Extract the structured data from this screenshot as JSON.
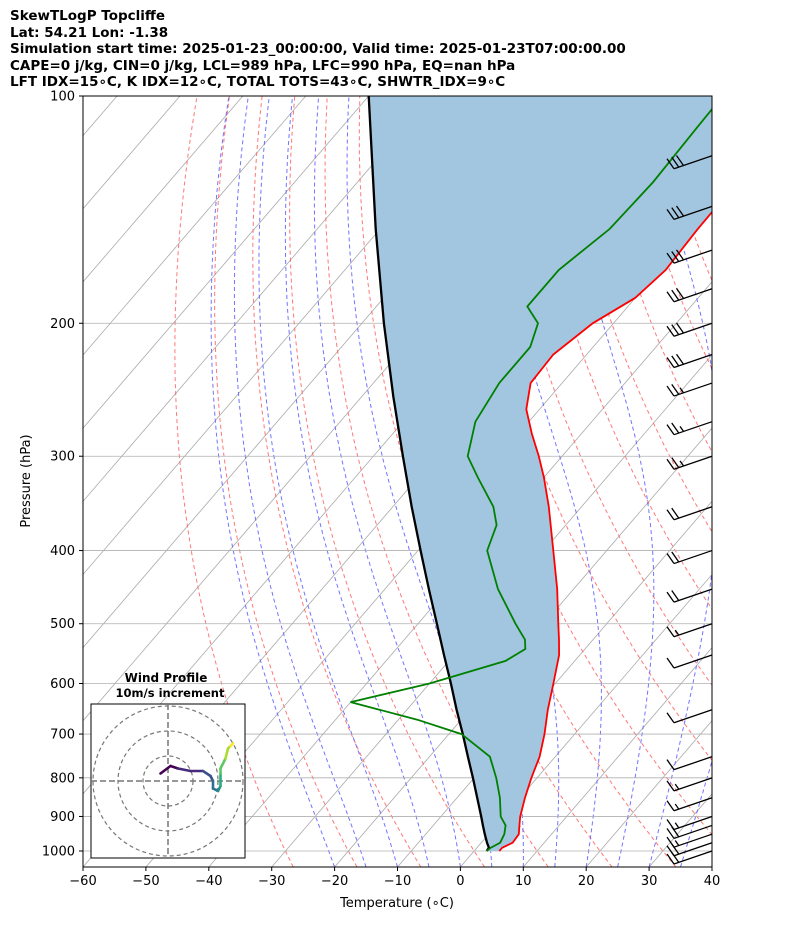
{
  "header": {
    "line1": "SkewTLogP Topcliffe",
    "line2": "Lat: 54.21   Lon: -1.38",
    "line3": "Simulation start time: 2025-01-23_00:00:00, Valid time: 2025-01-23T07:00:00.00",
    "line4": "CAPE=0 j/kg, CIN=0 j/kg, LCL=989 hPa, LFC=990 hPa, EQ=nan hPa",
    "line5": "LFT IDX=15∘C, K IDX=12∘C, TOTAL TOTS=43∘C, SHWTR_IDX=9∘C"
  },
  "chart_data": [
    {
      "type": "line",
      "subtype": "skew-t log-p",
      "xlabel": "Temperature (∘C)",
      "ylabel": "Pressure (hPa)",
      "xlim": [
        -60,
        40
      ],
      "ylim": [
        1050,
        100
      ],
      "y_scale": "log",
      "grid": true,
      "x_ticks": [
        -60,
        -50,
        -40,
        -30,
        -20,
        -10,
        0,
        10,
        20,
        30,
        40
      ],
      "y_ticks": [
        100,
        200,
        300,
        400,
        500,
        600,
        700,
        800,
        900,
        1000
      ],
      "colors": {
        "temperature": "#ff0000",
        "dewpoint": "#008000",
        "parcel": "#000000",
        "shade": "#a3c6e0",
        "dry_adiabat": "#ff6060",
        "moist_adiabat": "#5a5aff",
        "isotherm": "#aaaaaa"
      },
      "series": [
        {
          "key": "temperature",
          "color": "#ff0000",
          "points": [
            [
              1000,
              4
            ],
            [
              990,
              4
            ],
            [
              975,
              5
            ],
            [
              950,
              4.8
            ],
            [
              925,
              3.7
            ],
            [
              900,
              2.6
            ],
            [
              850,
              0.8
            ],
            [
              800,
              -0.9
            ],
            [
              750,
              -2.5
            ],
            [
              700,
              -4.8
            ],
            [
              650,
              -7.6
            ],
            [
              600,
              -10.3
            ],
            [
              550,
              -13.3
            ],
            [
              525,
              -15.4
            ],
            [
              500,
              -17.7
            ],
            [
              450,
              -22.6
            ],
            [
              400,
              -28.5
            ],
            [
              350,
              -35.2
            ],
            [
              320,
              -40
            ],
            [
              300,
              -43.7
            ],
            [
              280,
              -47.9
            ],
            [
              260,
              -52.1
            ],
            [
              240,
              -55
            ],
            [
              220,
              -55.3
            ],
            [
              200,
              -53.3
            ],
            [
              185,
              -50
            ],
            [
              170,
              -49
            ],
            [
              150,
              -49.5
            ],
            [
              130,
              -49.6
            ],
            [
              115,
              -49.4
            ],
            [
              100,
              -50.5
            ]
          ]
        },
        {
          "key": "dewpoint",
          "color": "#008000",
          "points": [
            [
              1000,
              2
            ],
            [
              990,
              2.2
            ],
            [
              975,
              3
            ],
            [
              950,
              2.5
            ],
            [
              925,
              1.5
            ],
            [
              900,
              -0.5
            ],
            [
              850,
              -3.2
            ],
            [
              800,
              -6.5
            ],
            [
              750,
              -10.4
            ],
            [
              700,
              -18
            ],
            [
              670,
              -27
            ],
            [
              635,
              -40
            ],
            [
              600,
              -30
            ],
            [
              560,
              -21
            ],
            [
              540,
              -19.5
            ],
            [
              525,
              -20.8
            ],
            [
              500,
              -24.5
            ],
            [
              450,
              -32
            ],
            [
              400,
              -39
            ],
            [
              370,
              -41
            ],
            [
              350,
              -44
            ],
            [
              320,
              -50.5
            ],
            [
              300,
              -55
            ],
            [
              270,
              -58.5
            ],
            [
              240,
              -60
            ],
            [
              215,
              -60
            ],
            [
              200,
              -62
            ],
            [
              190,
              -66
            ],
            [
              170,
              -66
            ],
            [
              150,
              -63.5
            ],
            [
              130,
              -63
            ],
            [
              110,
              -63.5
            ],
            [
              100,
              -63.7
            ]
          ]
        },
        {
          "key": "parcel",
          "color": "#000000",
          "points": [
            [
              1000,
              2
            ],
            [
              990,
              1.9
            ],
            [
              975,
              0.9
            ],
            [
              950,
              -0.6
            ],
            [
              925,
              -2.1
            ],
            [
              900,
              -3.6
            ],
            [
              850,
              -6.8
            ],
            [
              800,
              -10.2
            ],
            [
              750,
              -13.9
            ],
            [
              700,
              -17.8
            ],
            [
              650,
              -22.1
            ],
            [
              600,
              -26.6
            ],
            [
              550,
              -31.6
            ],
            [
              500,
              -37
            ],
            [
              450,
              -43
            ],
            [
              400,
              -49.6
            ],
            [
              350,
              -57
            ],
            [
              300,
              -65.3
            ],
            [
              250,
              -75
            ],
            [
              200,
              -86.5
            ],
            [
              150,
              -100.7
            ],
            [
              100,
              -120
            ]
          ]
        }
      ],
      "shaded_region": {
        "between": [
          "temperature",
          "parcel"
        ],
        "color": "#a3c6e0"
      },
      "wind_barbs": {
        "color": "#000000",
        "levels": [
          {
            "p": 1000,
            "speed_kt": 20
          },
          {
            "p": 975,
            "speed_kt": 20
          },
          {
            "p": 950,
            "speed_kt": 15
          },
          {
            "p": 925,
            "speed_kt": 20
          },
          {
            "p": 900,
            "speed_kt": 15
          },
          {
            "p": 850,
            "speed_kt": 15
          },
          {
            "p": 800,
            "speed_kt": 15
          },
          {
            "p": 750,
            "speed_kt": 10
          },
          {
            "p": 650,
            "speed_kt": 10
          },
          {
            "p": 550,
            "speed_kt": 10
          },
          {
            "p": 500,
            "speed_kt": 15
          },
          {
            "p": 450,
            "speed_kt": 20
          },
          {
            "p": 400,
            "speed_kt": 20
          },
          {
            "p": 350,
            "speed_kt": 20
          },
          {
            "p": 300,
            "speed_kt": 25
          },
          {
            "p": 270,
            "speed_kt": 25
          },
          {
            "p": 240,
            "speed_kt": 25
          },
          {
            "p": 220,
            "speed_kt": 30
          },
          {
            "p": 200,
            "speed_kt": 30
          },
          {
            "p": 180,
            "speed_kt": 30
          },
          {
            "p": 160,
            "speed_kt": 30
          },
          {
            "p": 140,
            "speed_kt": 30
          },
          {
            "p": 120,
            "speed_kt": 30
          }
        ]
      }
    },
    {
      "type": "line",
      "subtype": "hodograph",
      "title": "Wind Profile",
      "subtitle": "10m/s increment",
      "rings_ms": [
        10,
        20,
        30
      ],
      "colormap": "viridis",
      "points": [
        [
          -3,
          3
        ],
        [
          1,
          6
        ],
        [
          4,
          5
        ],
        [
          9,
          4
        ],
        [
          14,
          4
        ],
        [
          17,
          2
        ],
        [
          18,
          0
        ],
        [
          18,
          -3
        ],
        [
          20,
          -4
        ],
        [
          21,
          -2
        ],
        [
          21,
          0
        ],
        [
          21,
          3
        ],
        [
          21,
          5
        ],
        [
          23,
          9
        ],
        [
          24,
          13
        ],
        [
          25,
          14
        ],
        [
          26,
          15
        ]
      ]
    }
  ]
}
